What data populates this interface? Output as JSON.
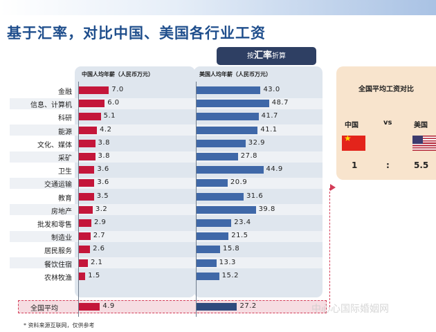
{
  "title": "基于汇率，对比中国、美国各行业工资",
  "rate_box": {
    "prefix": "按",
    "main": "汇率",
    "suffix": "折算"
  },
  "chart_data": {
    "type": "bar",
    "categories": [
      "金融",
      "信息、计算机",
      "科研",
      "能源",
      "文化、媒体",
      "采矿",
      "卫生",
      "交通运输",
      "教育",
      "房地产",
      "批发和零售",
      "制造业",
      "居民服务",
      "餐饮住宿",
      "农林牧渔"
    ],
    "series": [
      {
        "name": "中国人均年薪（人民币万元）",
        "values": [
          7.0,
          6.0,
          5.1,
          4.2,
          3.8,
          3.8,
          3.6,
          3.6,
          3.5,
          3.2,
          2.9,
          2.7,
          2.6,
          2.1,
          1.5
        ],
        "color": "#c4163a"
      },
      {
        "name": "美国人均年薪（人民币万元）",
        "values": [
          43.0,
          48.7,
          41.7,
          41.1,
          32.9,
          27.8,
          44.9,
          20.9,
          31.6,
          39.8,
          23.4,
          21.5,
          15.8,
          13.3,
          15.2
        ],
        "color": "#3f68a8"
      }
    ],
    "average": {
      "label": "全国平均",
      "china": 4.9,
      "usa": 27.2
    }
  },
  "side": {
    "title": "全国平均工资对比",
    "china_label": "中国",
    "vs": "vs",
    "usa_label": "美国",
    "china_ratio": "1",
    "colon": ":",
    "usa_ratio": "5.5"
  },
  "note": "* 资料来源互联网，仅供参考",
  "watermark": "中心心国际婚姻网"
}
